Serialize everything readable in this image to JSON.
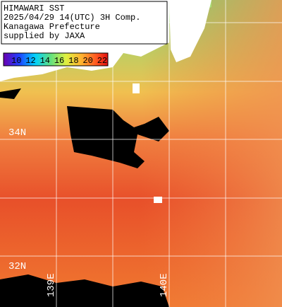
{
  "title_box": {
    "lines": [
      "HIMAWARI SST",
      "2025/04/29 14(UTC) 3H Comp.",
      "Kanagawa Prefecture",
      "supplied by JAXA"
    ]
  },
  "colorbar": {
    "labels": [
      "10",
      "12",
      "14",
      "16",
      "18",
      "20",
      "22"
    ]
  },
  "grid": {
    "lat_labels": [
      "34N",
      "32N"
    ],
    "lon_labels": [
      "139E",
      "140E"
    ]
  }
}
